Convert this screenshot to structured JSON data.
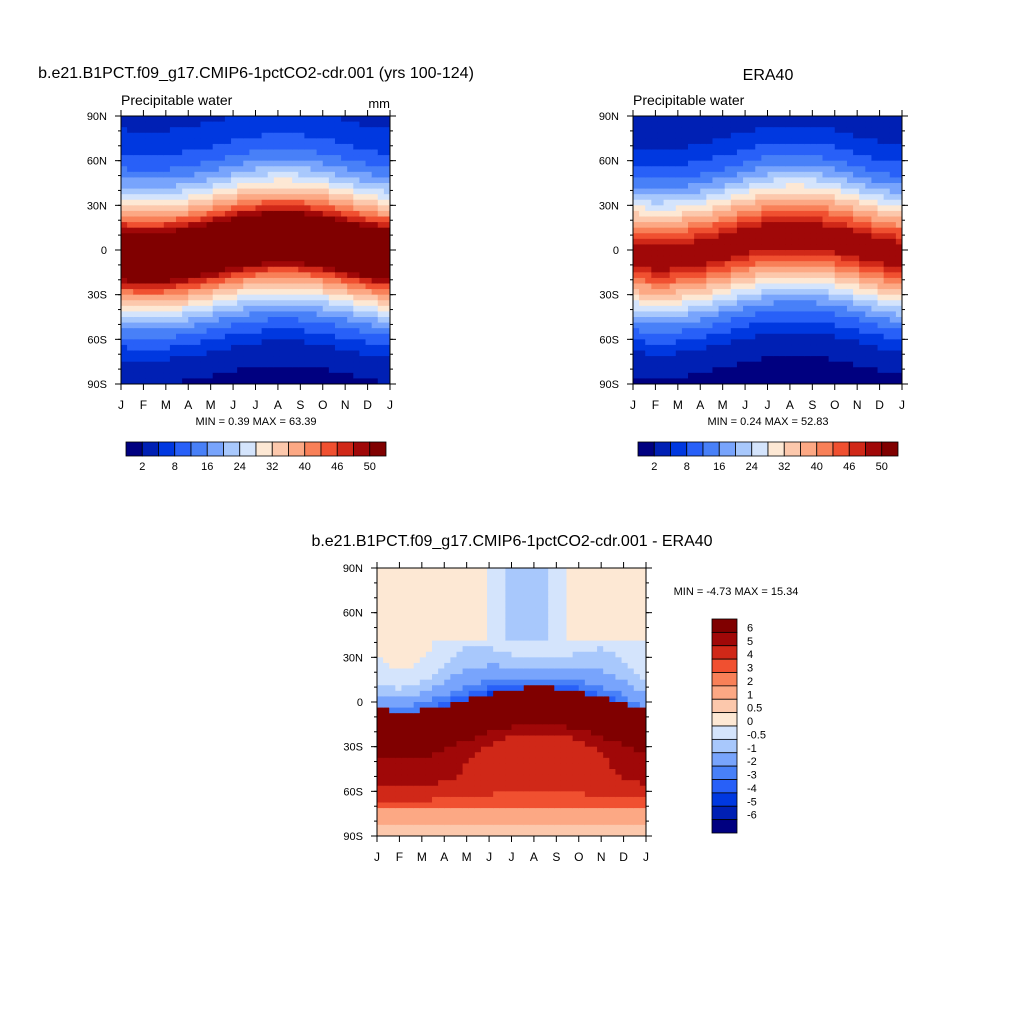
{
  "colors": {
    "seq_levels": [
      "#000080",
      "#0020b4",
      "#0038e0",
      "#2860f8",
      "#4880f8",
      "#78a4fc",
      "#a8c8fc",
      "#d4e4fc",
      "#fde8d4",
      "#fcc8ac",
      "#fca884",
      "#f88058",
      "#f05030",
      "#d02818",
      "#a00808",
      "#800000"
    ],
    "diff_levels": [
      "#000080",
      "#0020b4",
      "#0038e0",
      "#2860f8",
      "#4880f8",
      "#78a4fc",
      "#a8c8fc",
      "#d4e4fc",
      "#fde8d4",
      "#fcc8ac",
      "#fca884",
      "#f88058",
      "#f05030",
      "#d02818",
      "#a00808",
      "#800000"
    ]
  },
  "chart_data": [
    {
      "type": "heatmap",
      "title": "b.e21.B1PCT.f09_g17.CMIP6-1pctCO2-cdr.001 (yrs 100-124)",
      "left_label": "Precipitable water",
      "units_label": "mm",
      "stats": "MIN =   0.39 MAX =  63.39",
      "x_ticks": [
        "J",
        "F",
        "M",
        "A",
        "M",
        "J",
        "J",
        "A",
        "S",
        "O",
        "N",
        "D",
        "J"
      ],
      "y_ticks": [
        "90N",
        "60N",
        "30N",
        "0",
        "30S",
        "60S",
        "90S"
      ],
      "ylim": [
        -90,
        90
      ],
      "colorbar_labels": [
        "2",
        "8",
        "16",
        "24",
        "32",
        "40",
        "46",
        "50"
      ],
      "field": {
        "peak_value": 58,
        "itcz_lat_jan": -5,
        "itcz_lat_aug": 8,
        "pole_north": 4,
        "pole_south": 1,
        "width": 30
      }
    },
    {
      "type": "heatmap",
      "title": "ERA40",
      "left_label": "Precipitable water",
      "stats": "MIN =   0.24 MAX =  52.83",
      "x_ticks": [
        "J",
        "F",
        "M",
        "A",
        "M",
        "J",
        "J",
        "A",
        "S",
        "O",
        "N",
        "D",
        "J"
      ],
      "y_ticks": [
        "90N",
        "60N",
        "30N",
        "0",
        "30S",
        "60S",
        "90S"
      ],
      "ylim": [
        -90,
        90
      ],
      "colorbar_labels": [
        "2",
        "8",
        "16",
        "24",
        "32",
        "40",
        "46",
        "50"
      ],
      "field": {
        "peak_value": 50,
        "itcz_lat_jan": -5,
        "itcz_lat_aug": 10,
        "pole_north": 3,
        "pole_south": 1,
        "width": 29
      }
    },
    {
      "type": "heatmap",
      "title": "b.e21.B1PCT.f09_g17.CMIP6-1pctCO2-cdr.001 - ERA40",
      "stats": "MIN =  -4.73 MAX =  15.34",
      "x_ticks": [
        "J",
        "F",
        "M",
        "A",
        "M",
        "J",
        "J",
        "A",
        "S",
        "O",
        "N",
        "D",
        "J"
      ],
      "y_ticks": [
        "90N",
        "60N",
        "30N",
        "0",
        "30S",
        "60S",
        "90S"
      ],
      "ylim": [
        -90,
        90
      ],
      "colorbar_labels": [
        "6",
        "5",
        "4",
        "3",
        "2",
        "1",
        "0.5",
        "0",
        "-0.5",
        "-1",
        "-2",
        "-3",
        "-4",
        "-5",
        "-6"
      ]
    }
  ]
}
